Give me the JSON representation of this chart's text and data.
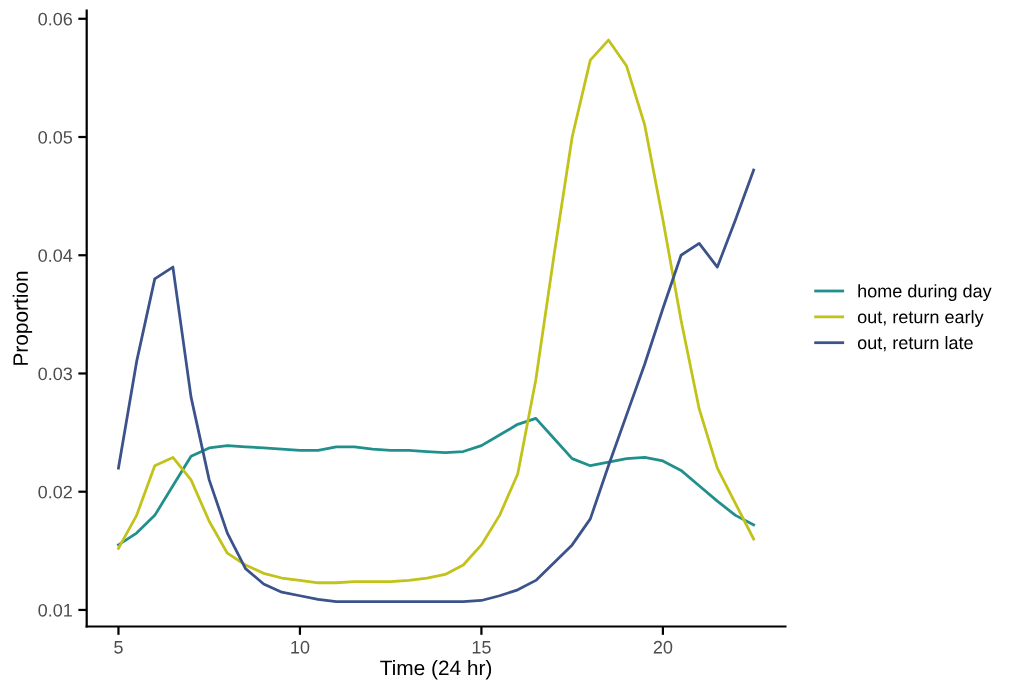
{
  "chart_data": {
    "type": "line",
    "xlabel": "Time (24 hr)",
    "ylabel": "Proportion",
    "x": [
      5,
      5.5,
      6,
      6.5,
      7,
      7.5,
      8,
      8.5,
      9,
      9.5,
      10,
      10.5,
      11,
      11.5,
      12,
      12.5,
      13,
      13.5,
      14,
      14.5,
      15,
      15.5,
      16,
      16.5,
      17,
      17.5,
      18,
      18.5,
      19,
      19.5,
      20,
      20.5,
      21,
      21.5,
      22,
      22.5
    ],
    "series": [
      {
        "name": "home during day",
        "color": "#21908c",
        "values": [
          0.0155,
          0.0165,
          0.018,
          0.0205,
          0.023,
          0.0237,
          0.0239,
          0.0238,
          0.0237,
          0.0236,
          0.0235,
          0.0235,
          0.0238,
          0.0238,
          0.0236,
          0.0235,
          0.0235,
          0.0234,
          0.0233,
          0.0234,
          0.0239,
          0.0248,
          0.0257,
          0.0262,
          0.0245,
          0.0228,
          0.0222,
          0.0225,
          0.0228,
          0.0229,
          0.0226,
          0.0218,
          0.0205,
          0.0192,
          0.018,
          0.0172
        ]
      },
      {
        "name": "out, return early",
        "color": "#c2c21a",
        "values": [
          0.0152,
          0.018,
          0.0222,
          0.0229,
          0.021,
          0.0175,
          0.0148,
          0.0138,
          0.0131,
          0.0127,
          0.0125,
          0.0123,
          0.0123,
          0.0124,
          0.0124,
          0.0124,
          0.0125,
          0.0127,
          0.013,
          0.0138,
          0.0155,
          0.018,
          0.0215,
          0.0295,
          0.04,
          0.05,
          0.0565,
          0.0582,
          0.056,
          0.051,
          0.043,
          0.0345,
          0.027,
          0.022,
          0.019,
          0.016
        ]
      },
      {
        "name": "out, return late",
        "color": "#3b528b",
        "values": [
          0.022,
          0.031,
          0.038,
          0.039,
          0.028,
          0.021,
          0.0165,
          0.0135,
          0.0122,
          0.0115,
          0.0112,
          0.0109,
          0.0107,
          0.0107,
          0.0107,
          0.0107,
          0.0107,
          0.0107,
          0.0107,
          0.0107,
          0.0108,
          0.0112,
          0.0117,
          0.0125,
          0.014,
          0.0155,
          0.0177,
          0.0222,
          0.0265,
          0.0308,
          0.0355,
          0.04,
          0.041,
          0.039,
          0.043,
          0.0472
        ]
      }
    ],
    "xlim": [
      4.125,
      23.375
    ],
    "ylim": [
      0.0086,
      0.0607
    ],
    "xticks": [
      5,
      10,
      15,
      20
    ],
    "yticks": [
      0.01,
      0.02,
      0.03,
      0.04,
      0.05,
      0.06
    ],
    "grid": false,
    "legend": "right",
    "marker": "none",
    "line_style": "solid"
  }
}
